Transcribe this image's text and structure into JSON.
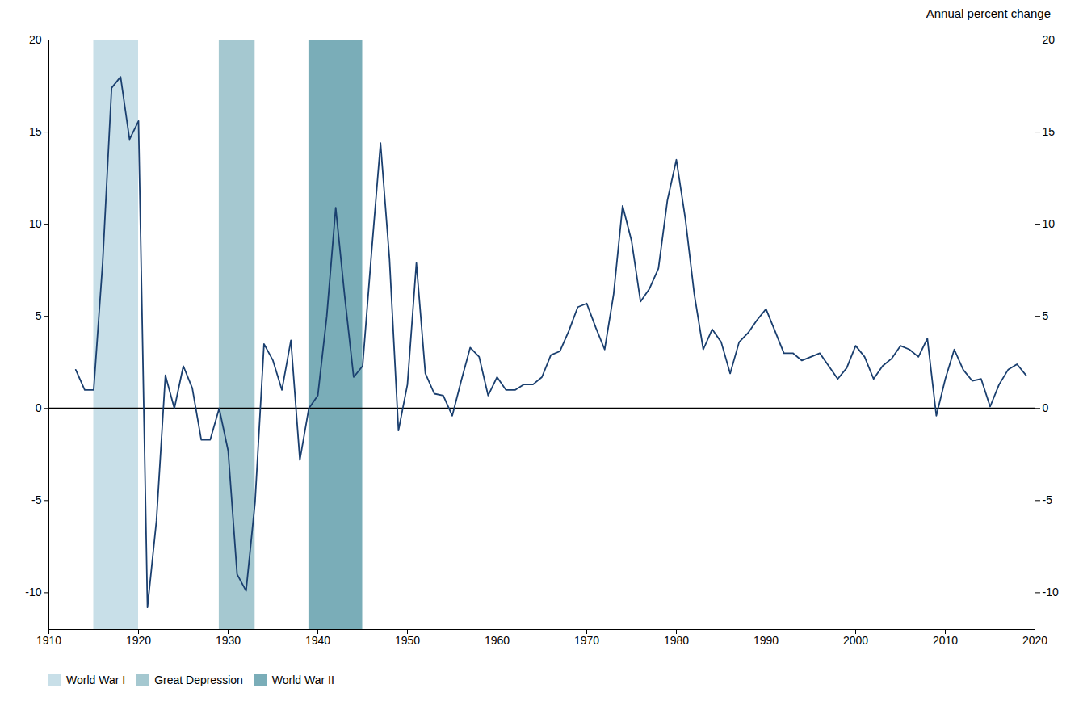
{
  "chart_data": {
    "type": "line",
    "ylabel": "Annual percent change",
    "x": [
      1913,
      1914,
      1915,
      1916,
      1917,
      1918,
      1919,
      1920,
      1921,
      1922,
      1923,
      1924,
      1925,
      1926,
      1927,
      1928,
      1929,
      1930,
      1931,
      1932,
      1933,
      1934,
      1935,
      1936,
      1937,
      1938,
      1939,
      1940,
      1941,
      1942,
      1943,
      1944,
      1945,
      1946,
      1947,
      1948,
      1949,
      1950,
      1951,
      1952,
      1953,
      1954,
      1955,
      1956,
      1957,
      1958,
      1959,
      1960,
      1961,
      1962,
      1963,
      1964,
      1965,
      1966,
      1967,
      1968,
      1969,
      1970,
      1971,
      1972,
      1973,
      1974,
      1975,
      1976,
      1977,
      1978,
      1979,
      1980,
      1981,
      1982,
      1983,
      1984,
      1985,
      1986,
      1987,
      1988,
      1989,
      1990,
      1991,
      1992,
      1993,
      1994,
      1995,
      1996,
      1997,
      1998,
      1999,
      2000,
      2001,
      2002,
      2003,
      2004,
      2005,
      2006,
      2007,
      2008,
      2009,
      2010,
      2011,
      2012,
      2013,
      2014,
      2015,
      2016,
      2017,
      2018,
      2019
    ],
    "values": [
      2.1,
      1.0,
      1.0,
      7.9,
      17.4,
      18.0,
      14.6,
      15.6,
      -10.8,
      -6.1,
      1.8,
      0.0,
      2.3,
      1.1,
      -1.7,
      -1.7,
      0.0,
      -2.3,
      -9.0,
      -9.9,
      -5.1,
      3.5,
      2.6,
      1.0,
      3.7,
      -2.8,
      0.0,
      0.7,
      5.0,
      10.9,
      6.1,
      1.7,
      2.3,
      8.5,
      14.4,
      8.1,
      -1.2,
      1.3,
      7.9,
      1.9,
      0.8,
      0.7,
      -0.4,
      1.5,
      3.3,
      2.8,
      0.7,
      1.7,
      1.0,
      1.0,
      1.3,
      1.3,
      1.7,
      2.9,
      3.1,
      4.2,
      5.5,
      5.7,
      4.4,
      3.2,
      6.2,
      11.0,
      9.1,
      5.8,
      6.5,
      7.6,
      11.3,
      13.5,
      10.3,
      6.2,
      3.2,
      4.3,
      3.6,
      1.9,
      3.6,
      4.1,
      4.8,
      5.4,
      4.2,
      3.0,
      3.0,
      2.6,
      2.8,
      3.0,
      2.3,
      1.6,
      2.2,
      3.4,
      2.8,
      1.6,
      2.3,
      2.7,
      3.4,
      3.2,
      2.8,
      3.8,
      -0.4,
      1.6,
      3.2,
      2.1,
      1.5,
      1.6,
      0.1,
      1.3,
      2.1,
      2.4,
      1.8
    ],
    "color": "#1a3f6f",
    "xlim": [
      1910,
      2020
    ],
    "xticks": [
      1910,
      1920,
      1930,
      1940,
      1950,
      1960,
      1970,
      1980,
      1990,
      2000,
      2010,
      2020
    ],
    "ylim": [
      -12,
      20
    ],
    "yticks": [
      -10,
      -5,
      0,
      5,
      10,
      15,
      20
    ],
    "shaded_regions": [
      {
        "label": "World War I",
        "start": 1915,
        "end": 1920,
        "color": "#c8dfe8"
      },
      {
        "label": "Great Depression",
        "start": 1929,
        "end": 1933,
        "color": "#a5c8d0"
      },
      {
        "label": "World War II",
        "start": 1939,
        "end": 1945,
        "color": "#7aadb8"
      }
    ],
    "hlines": [
      0
    ],
    "legend": "bottom",
    "grid": false
  }
}
